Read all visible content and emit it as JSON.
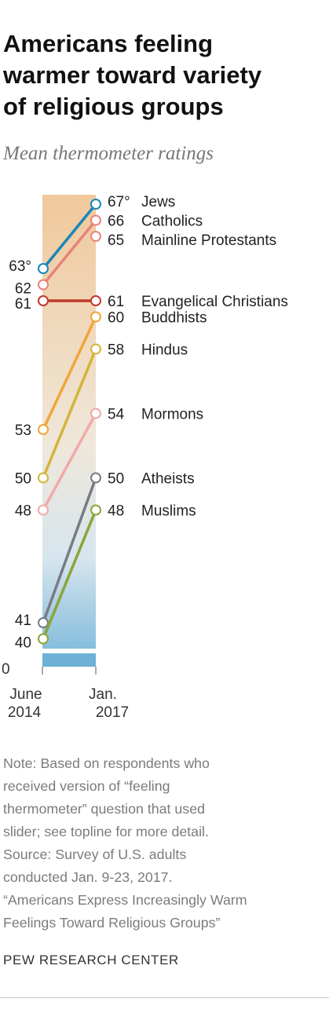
{
  "title_lines": [
    "Americans feeling",
    "warmer toward variety",
    "of religious groups"
  ],
  "subtitle": "Mean thermometer ratings",
  "chart_data": {
    "type": "slope",
    "title": "Americans feeling warmer toward variety of religious groups",
    "subtitle": "Mean thermometer ratings",
    "x": [
      "June 2014",
      "Jan. 2017"
    ],
    "x_tick_labels": [
      [
        "June",
        "2014"
      ],
      [
        "Jan.",
        "2017"
      ]
    ],
    "y_axis_label": "0",
    "degree_symbol_on": "Jews",
    "series": [
      {
        "name": "Jews",
        "values": [
          63,
          67
        ],
        "color": "#1a86b8"
      },
      {
        "name": "Catholics",
        "values": [
          62,
          66
        ],
        "color": "#e8837a"
      },
      {
        "name": "Mainline Protestants",
        "values": [
          null,
          65
        ],
        "color": "#e8837a"
      },
      {
        "name": "Evangelical Christians",
        "values": [
          61,
          61
        ],
        "color": "#c0392b"
      },
      {
        "name": "Buddhists",
        "values": [
          53,
          60
        ],
        "color": "#f0a638"
      },
      {
        "name": "Hindus",
        "values": [
          50,
          58
        ],
        "color": "#d4b43a"
      },
      {
        "name": "Mormons",
        "values": [
          48,
          54
        ],
        "color": "#f2a9a8"
      },
      {
        "name": "Atheists",
        "values": [
          41,
          50
        ],
        "color": "#7a7a85"
      },
      {
        "name": "Muslims",
        "values": [
          40,
          48
        ],
        "color": "#8ba43a"
      }
    ]
  },
  "note_lines": [
    "Note: Based on respondents who",
    "received version of “feeling",
    "thermometer” question that used",
    "slider; see topline for more detail.",
    "Source: Survey of U.S. adults",
    "conducted Jan. 9-23, 2017.",
    "“Americans Express Increasingly Warm",
    "Feelings Toward Religious Groups”"
  ],
  "footer": "PEW RESEARCH CENTER"
}
